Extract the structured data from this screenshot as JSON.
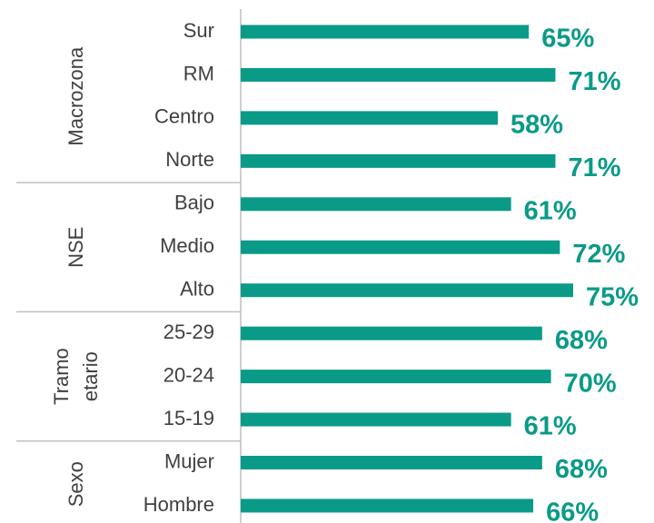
{
  "chart_data": {
    "type": "bar",
    "orientation": "horizontal",
    "color": "#0a9a88",
    "xlim": [
      0,
      100
    ],
    "groups": [
      {
        "label": [
          "Macrozona"
        ],
        "categories": [
          "Sur",
          "RM",
          "Centro",
          "Norte"
        ],
        "values": [
          65,
          71,
          58,
          71
        ],
        "value_labels": [
          "65%",
          "71%",
          "58%",
          "71%"
        ]
      },
      {
        "label": [
          "NSE"
        ],
        "categories": [
          "Bajo",
          "Medio",
          "Alto"
        ],
        "values": [
          61,
          72,
          75
        ],
        "value_labels": [
          "61%",
          "72%",
          "75%"
        ]
      },
      {
        "label": [
          "Tramo",
          "etario"
        ],
        "categories": [
          "25-29",
          "20-24",
          "15-19"
        ],
        "values": [
          68,
          70,
          61
        ],
        "value_labels": [
          "68%",
          "70%",
          "61%"
        ]
      },
      {
        "label": [
          "Sexo"
        ],
        "categories": [
          "Mujer",
          "Hombre"
        ],
        "values": [
          68,
          66
        ],
        "value_labels": [
          "68%",
          "66%"
        ]
      }
    ]
  }
}
